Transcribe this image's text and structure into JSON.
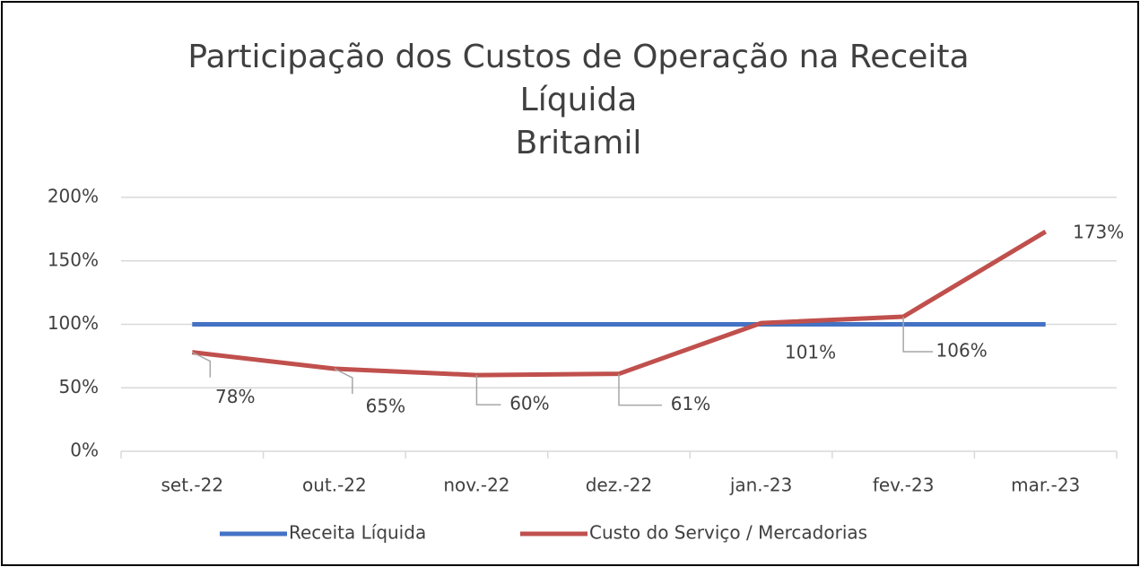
{
  "chart_data": {
    "type": "line",
    "title": "Participação dos Custos de Operação na Receita Líquida",
    "subtitle": "Britamil",
    "categories": [
      "set.-22",
      "out.-22",
      "nov.-22",
      "dez.-22",
      "jan.-23",
      "fev.-23",
      "mar.-23"
    ],
    "series": [
      {
        "name": "Receita Líquida",
        "color": "#4472c4",
        "values": [
          100,
          100,
          100,
          100,
          100,
          100,
          100
        ]
      },
      {
        "name": "Custo do Serviço / Mercadorias",
        "color": "#c0504d",
        "values": [
          78,
          65,
          60,
          61,
          101,
          106,
          173
        ],
        "value_labels": [
          "78%",
          "65%",
          "60%",
          "61%",
          "101%",
          "106%",
          "173%"
        ]
      }
    ],
    "ylim": [
      0,
      200
    ],
    "yticks": [
      {
        "value": 0,
        "label": "0%"
      },
      {
        "value": 50,
        "label": "50%"
      },
      {
        "value": 100,
        "label": "100%"
      },
      {
        "value": 150,
        "label": "150%"
      },
      {
        "value": 200,
        "label": "200%"
      }
    ],
    "grid": true,
    "legend": "bottom"
  }
}
